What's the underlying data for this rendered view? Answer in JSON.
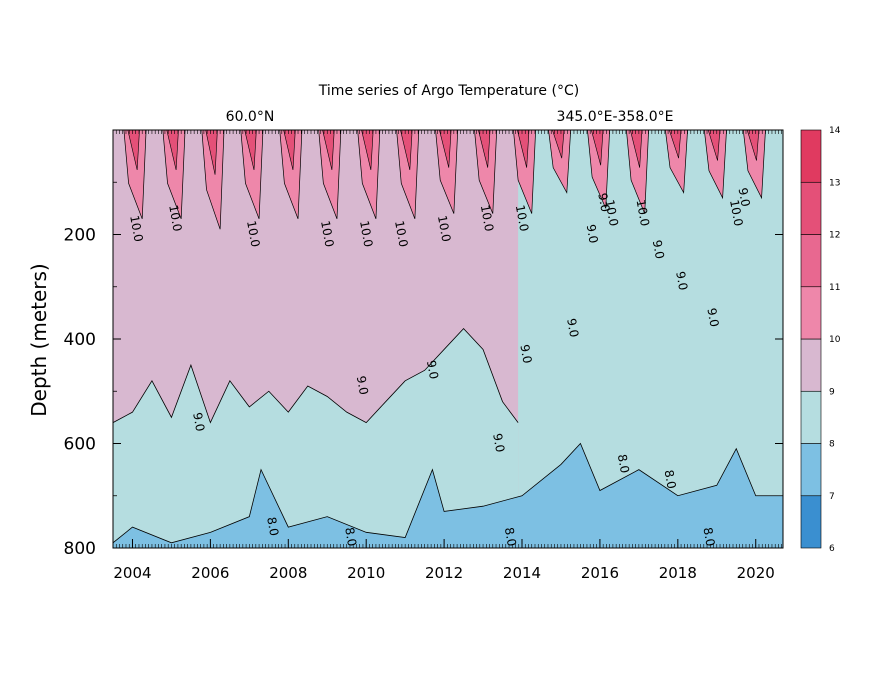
{
  "chart_data": {
    "type": "contour",
    "title": "Time series of Argo Temperature (°C)",
    "left_subtitle": "60.0°N",
    "right_subtitle": "345.0°E-358.0°E",
    "xlabel": "",
    "ylabel": "Depth (meters)",
    "xlim": [
      2003.5,
      2020.7
    ],
    "ylim": [
      0,
      800
    ],
    "y_inverted": true,
    "x_ticks": [
      2004,
      2006,
      2008,
      2010,
      2012,
      2014,
      2016,
      2018,
      2020
    ],
    "x_tick_labels": [
      "2004",
      "2006",
      "2008",
      "2010",
      "2012",
      "2014",
      "2016",
      "2018",
      "2020"
    ],
    "y_ticks": [
      200,
      400,
      600,
      800
    ],
    "y_tick_labels": [
      "200",
      "400",
      "600",
      "800"
    ],
    "colorbar": {
      "levels": [
        6,
        7,
        8,
        9,
        10,
        11,
        12,
        13,
        14
      ],
      "labels": [
        "6",
        "7",
        "8",
        "9",
        "10",
        "11",
        "12",
        "13",
        "14"
      ],
      "colors": [
        "#3a8fd0",
        "#7dc0e3",
        "#b5dde0",
        "#d8b8d0",
        "#ee87aa",
        "#e86890",
        "#e45078",
        "#e03a60"
      ]
    },
    "isotherm_depth_9C": {
      "x": [
        2003.5,
        2004.0,
        2004.5,
        2005.0,
        2005.5,
        2006.0,
        2006.5,
        2007.0,
        2007.5,
        2008.0,
        2008.5,
        2009.0,
        2009.5,
        2010.0,
        2010.5,
        2011.0,
        2011.5,
        2012.0,
        2012.5,
        2013.0,
        2013.5,
        2013.9
      ],
      "depth": [
        560,
        540,
        480,
        550,
        450,
        560,
        480,
        530,
        500,
        540,
        490,
        510,
        540,
        560,
        520,
        480,
        460,
        420,
        380,
        420,
        520,
        560
      ]
    },
    "isotherm_depth_8C": {
      "x": [
        2003.5,
        2004.0,
        2005.0,
        2006.0,
        2007.0,
        2007.3,
        2008.0,
        2009.0,
        2010.0,
        2011.0,
        2011.7,
        2012.0,
        2013.0,
        2014.0,
        2015.0,
        2015.5,
        2016.0,
        2017.0,
        2018.0,
        2019.0,
        2019.5,
        2020.0,
        2020.7
      ],
      "depth": [
        790,
        760,
        790,
        770,
        740,
        650,
        760,
        740,
        770,
        780,
        650,
        730,
        720,
        700,
        640,
        600,
        690,
        650,
        700,
        680,
        610,
        700,
        700
      ]
    },
    "isotherm_depth_10C_pulses": {
      "x": [
        2003.9,
        2004.9,
        2005.9,
        2006.9,
        2007.9,
        2008.9,
        2009.9,
        2010.9,
        2011.9,
        2012.9,
        2013.9,
        2014.8,
        2015.8,
        2016.8,
        2017.8,
        2018.8,
        2019.8
      ],
      "depth": [
        170,
        170,
        190,
        170,
        170,
        170,
        170,
        170,
        160,
        160,
        160,
        120,
        150,
        160,
        120,
        130,
        130
      ]
    },
    "contour_labels": [
      {
        "text": "10.0",
        "x": 2004.0,
        "depth": 190
      },
      {
        "text": "10.0",
        "x": 2005.0,
        "depth": 170
      },
      {
        "text": "10.0",
        "x": 2007.0,
        "depth": 200
      },
      {
        "text": "10.0",
        "x": 2008.9,
        "depth": 200
      },
      {
        "text": "10.0",
        "x": 2009.9,
        "depth": 200
      },
      {
        "text": "10.0",
        "x": 2010.8,
        "depth": 200
      },
      {
        "text": "10.0",
        "x": 2011.9,
        "depth": 190
      },
      {
        "text": "10.0",
        "x": 2013.0,
        "depth": 170
      },
      {
        "text": "10.0",
        "x": 2013.9,
        "depth": 170
      },
      {
        "text": "10.0",
        "x": 2016.2,
        "depth": 160
      },
      {
        "text": "10.0",
        "x": 2017.0,
        "depth": 160
      },
      {
        "text": "10.0",
        "x": 2019.4,
        "depth": 160
      },
      {
        "text": "9.0",
        "x": 2015.7,
        "depth": 200
      },
      {
        "text": "9.0",
        "x": 2016.0,
        "depth": 140
      },
      {
        "text": "9.0",
        "x": 2017.4,
        "depth": 230
      },
      {
        "text": "9.0",
        "x": 2018.0,
        "depth": 290
      },
      {
        "text": "9.0",
        "x": 2018.8,
        "depth": 360
      },
      {
        "text": "9.0",
        "x": 2019.6,
        "depth": 130
      },
      {
        "text": "9.0",
        "x": 2015.2,
        "depth": 380
      },
      {
        "text": "9.0",
        "x": 2014.0,
        "depth": 430
      },
      {
        "text": "9.0",
        "x": 2011.6,
        "depth": 460
      },
      {
        "text": "9.0",
        "x": 2009.8,
        "depth": 490
      },
      {
        "text": "9.0",
        "x": 2005.6,
        "depth": 560
      },
      {
        "text": "9.0",
        "x": 2013.3,
        "depth": 600
      },
      {
        "text": "8.0",
        "x": 2007.5,
        "depth": 760
      },
      {
        "text": "8.0",
        "x": 2009.5,
        "depth": 780
      },
      {
        "text": "8.0",
        "x": 2013.6,
        "depth": 780
      },
      {
        "text": "8.0",
        "x": 2016.5,
        "depth": 640
      },
      {
        "text": "8.0",
        "x": 2017.7,
        "depth": 670
      },
      {
        "text": "8.0",
        "x": 2018.7,
        "depth": 780
      }
    ]
  }
}
